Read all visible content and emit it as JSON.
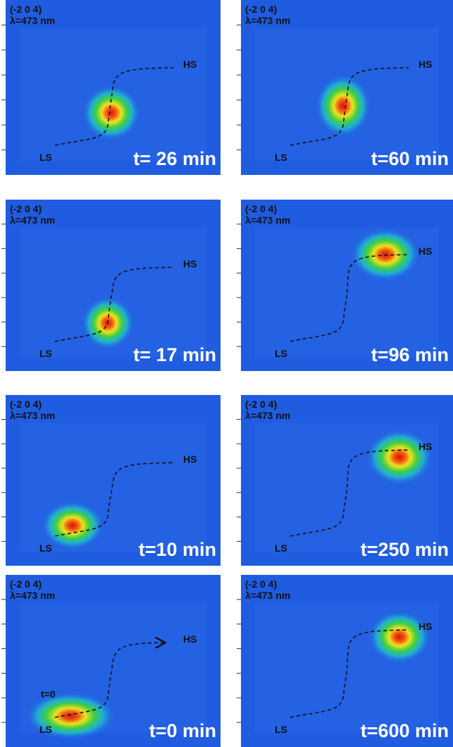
{
  "panels": [
    {
      "hkl": "(-2 0 4)",
      "wavelength": "λ=473 nm",
      "hs": "HS",
      "ls": "LS",
      "time": "t= 26 min"
    },
    {
      "hkl": "(-2 0 4)",
      "wavelength": "λ=473 nm",
      "hs": "HS",
      "ls": "LS",
      "time": "t=60 min"
    },
    {
      "hkl": "(-2 0 4)",
      "wavelength": "λ=473 nm",
      "hs": "HS",
      "ls": "LS",
      "time": "t= 17 min"
    },
    {
      "hkl": "(-2 0 4)",
      "wavelength": "λ=473 nm",
      "hs": "HS",
      "ls": "LS",
      "time": "t=96 min"
    },
    {
      "hkl": "(-2 0 4)",
      "wavelength": "λ=473 nm",
      "hs": "HS",
      "ls": "LS",
      "time": "t=10 min"
    },
    {
      "hkl": "(-2 0 4)",
      "wavelength": "λ=473 nm",
      "hs": "HS",
      "ls": "LS",
      "time": "t=250 min"
    },
    {
      "hkl": "(-2 0 4)",
      "wavelength": "λ=473 nm",
      "hs": "HS",
      "ls": "LS",
      "time": "t=0 min",
      "marker": "t=0"
    },
    {
      "hkl": "(-2 0 4)",
      "wavelength": "λ=473 nm",
      "hs": "HS",
      "ls": "LS",
      "time": "t=600 min"
    }
  ]
}
